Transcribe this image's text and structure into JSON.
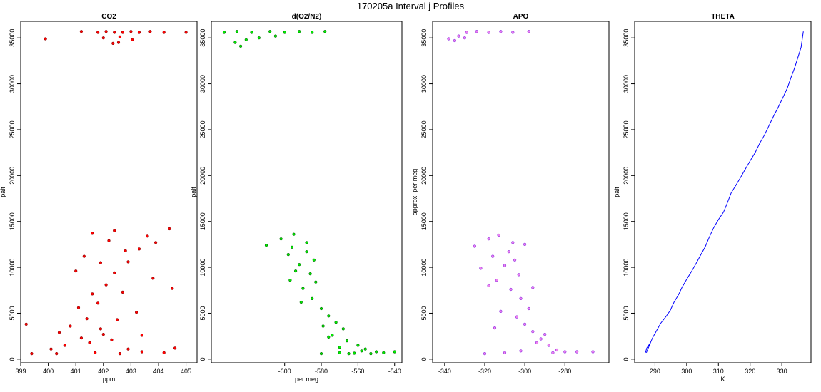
{
  "figure": {
    "title": "170205a   Interval j Profiles"
  },
  "chart_data": [
    {
      "type": "scatter",
      "title": "CO2",
      "xlabel": "ppm",
      "ylabel": "palt",
      "xlim": [
        399,
        405.4
      ],
      "ylim": [
        -400,
        36800
      ],
      "xticks": [
        399,
        400,
        401,
        402,
        403,
        404,
        405
      ],
      "yticks": [
        0,
        5000,
        10000,
        15000,
        20000,
        25000,
        30000,
        35000
      ],
      "colors": {
        "fill": "#ff0000",
        "edge": "#8b0000"
      },
      "series": [
        {
          "points": [
            [
              399.9,
              34900
            ],
            [
              401.2,
              35700
            ],
            [
              401.8,
              35600
            ],
            [
              402.1,
              35700
            ],
            [
              402.4,
              35600
            ],
            [
              402.7,
              35600
            ],
            [
              403.0,
              35700
            ],
            [
              403.3,
              35600
            ],
            [
              403.7,
              35700
            ],
            [
              404.2,
              35600
            ],
            [
              405.0,
              35600
            ],
            [
              402.35,
              34400
            ],
            [
              402.55,
              34500
            ],
            [
              403.05,
              34800
            ],
            [
              402.0,
              35000
            ],
            [
              402.6,
              35100
            ],
            [
              399.2,
              3800
            ],
            [
              400.4,
              2900
            ],
            [
              400.8,
              3600
            ],
            [
              401.4,
              4400
            ],
            [
              401.1,
              5600
            ],
            [
              401.8,
              6100
            ],
            [
              401.6,
              7100
            ],
            [
              402.1,
              8100
            ],
            [
              402.4,
              9400
            ],
            [
              402.9,
              10600
            ],
            [
              403.3,
              12000
            ],
            [
              403.6,
              13400
            ],
            [
              402.2,
              12900
            ],
            [
              401.3,
              11200
            ],
            [
              401.0,
              9600
            ],
            [
              402.7,
              7300
            ],
            [
              403.8,
              8800
            ],
            [
              404.5,
              7700
            ],
            [
              404.4,
              14200
            ],
            [
              401.6,
              13700
            ],
            [
              402.4,
              14000
            ],
            [
              403.2,
              5100
            ],
            [
              402.0,
              2700
            ],
            [
              400.6,
              1500
            ],
            [
              401.5,
              1800
            ],
            [
              403.4,
              2600
            ],
            [
              402.9,
              1100
            ],
            [
              401.9,
              3300
            ],
            [
              400.3,
              600
            ],
            [
              399.4,
              600
            ],
            [
              400.1,
              1100
            ],
            [
              401.7,
              700
            ],
            [
              402.6,
              600
            ],
            [
              403.4,
              800
            ],
            [
              404.2,
              700
            ],
            [
              404.6,
              1200
            ],
            [
              403.9,
              12700
            ],
            [
              402.8,
              11800
            ],
            [
              401.9,
              10500
            ],
            [
              402.5,
              4300
            ],
            [
              401.2,
              2300
            ],
            [
              402.3,
              2100
            ]
          ]
        }
      ]
    },
    {
      "type": "scatter",
      "title": "d(O2/N2)",
      "xlabel": "per meg",
      "ylabel": "palt",
      "xlim": [
        -640,
        -536
      ],
      "ylim": [
        -400,
        36800
      ],
      "xticks": [
        -600,
        -580,
        -560,
        -540
      ],
      "yticks": [
        0,
        5000,
        10000,
        15000,
        20000,
        25000,
        30000,
        35000
      ],
      "colors": {
        "fill": "#00ee00",
        "edge": "#006400"
      },
      "series": [
        {
          "points": [
            [
              -633,
              35600
            ],
            [
              -626,
              35700
            ],
            [
              -618,
              35600
            ],
            [
              -608,
              35700
            ],
            [
              -600,
              35600
            ],
            [
              -592,
              35700
            ],
            [
              -585,
              35600
            ],
            [
              -578,
              35700
            ],
            [
              -627,
              34500
            ],
            [
              -624,
              34100
            ],
            [
              -621,
              34800
            ],
            [
              -614,
              35000
            ],
            [
              -605,
              35200
            ],
            [
              -610,
              12400
            ],
            [
              -602,
              13100
            ],
            [
              -595,
              13600
            ],
            [
              -588,
              12700
            ],
            [
              -598,
              11400
            ],
            [
              -592,
              10300
            ],
            [
              -586,
              9300
            ],
            [
              -597,
              8600
            ],
            [
              -590,
              7700
            ],
            [
              -585,
              6600
            ],
            [
              -580,
              5500
            ],
            [
              -576,
              4700
            ],
            [
              -572,
              4000
            ],
            [
              -568,
              3300
            ],
            [
              -574,
              2600
            ],
            [
              -566,
              2000
            ],
            [
              -560,
              1500
            ],
            [
              -556,
              1100
            ],
            [
              -550,
              800
            ],
            [
              -546,
              700
            ],
            [
              -540,
              800
            ],
            [
              -570,
              700
            ],
            [
              -580,
              600
            ],
            [
              -562,
              650
            ],
            [
              -594,
              9600
            ],
            [
              -588,
              11700
            ],
            [
              -583,
              8400
            ],
            [
              -591,
              6200
            ],
            [
              -579,
              3600
            ],
            [
              -570,
              1300
            ],
            [
              -553,
              600
            ],
            [
              -584,
              10800
            ],
            [
              -596,
              12200
            ],
            [
              -576,
              2400
            ],
            [
              -558,
              900
            ],
            [
              -565,
              600
            ]
          ]
        }
      ]
    },
    {
      "type": "scatter",
      "title": "APO",
      "xlabel": "",
      "ylabel": "approx. per meg",
      "xlim": [
        -346,
        -258
      ],
      "ylim": [
        -400,
        36800
      ],
      "xticks": [
        -340,
        -320,
        -300,
        -280
      ],
      "yticks": [
        0,
        5000,
        10000,
        15000,
        20000,
        25000,
        30000,
        35000
      ],
      "colors": {
        "fill": "#ee82ee",
        "edge": "#8a2be2"
      },
      "series": [
        {
          "points": [
            [
              -338,
              34900
            ],
            [
              -333,
              35200
            ],
            [
              -329,
              35600
            ],
            [
              -324,
              35700
            ],
            [
              -318,
              35600
            ],
            [
              -312,
              35700
            ],
            [
              -306,
              35600
            ],
            [
              -298,
              35700
            ],
            [
              -335,
              34700
            ],
            [
              -330,
              35000
            ],
            [
              -325,
              12300
            ],
            [
              -318,
              13100
            ],
            [
              -313,
              13500
            ],
            [
              -306,
              12700
            ],
            [
              -316,
              11200
            ],
            [
              -310,
              10200
            ],
            [
              -303,
              9200
            ],
            [
              -314,
              8600
            ],
            [
              -307,
              7600
            ],
            [
              -302,
              6600
            ],
            [
              -298,
              5500
            ],
            [
              -304,
              4600
            ],
            [
              -300,
              3800
            ],
            [
              -296,
              3000
            ],
            [
              -292,
              2200
            ],
            [
              -288,
              1500
            ],
            [
              -284,
              1000
            ],
            [
              -280,
              800
            ],
            [
              -274,
              800
            ],
            [
              -266,
              800
            ],
            [
              -310,
              700
            ],
            [
              -320,
              600
            ],
            [
              -296,
              7800
            ],
            [
              -322,
              9900
            ],
            [
              -308,
              11700
            ],
            [
              -300,
              12500
            ],
            [
              -312,
              5200
            ],
            [
              -294,
              1800
            ],
            [
              -286,
              700
            ],
            [
              -302,
              900
            ],
            [
              -315,
              3400
            ],
            [
              -290,
              2700
            ],
            [
              -318,
              8000
            ],
            [
              -305,
              10800
            ]
          ]
        }
      ]
    },
    {
      "type": "line",
      "title": "THETA",
      "xlabel": "K",
      "ylabel": "palt",
      "xlim": [
        283.6,
        339.2
      ],
      "ylim": [
        -400,
        36800
      ],
      "xticks": [
        290,
        300,
        310,
        320,
        330
      ],
      "yticks": [
        0,
        5000,
        10000,
        15000,
        20000,
        25000,
        30000,
        35000
      ],
      "colors": {
        "line": "#0000ff"
      },
      "series": [
        {
          "x": [
            287.0,
            287.4,
            288.6,
            287.3,
            288.0,
            289.2,
            290.5,
            291.8,
            293.4,
            294.8,
            296.0,
            297.4,
            298.5,
            300.0,
            301.6,
            303.1,
            304.5,
            305.8,
            307.0,
            308.5,
            310.0,
            311.6,
            312.8,
            314.0,
            315.6,
            317.0,
            318.5,
            320.0,
            321.6,
            323.0,
            324.5,
            325.9,
            327.3,
            328.8,
            330.2,
            331.7,
            332.8,
            334.0,
            335.1,
            336.1,
            336.5,
            336.8
          ],
          "y": [
            700,
            1200,
            1800,
            700,
            1300,
            2300,
            3100,
            3900,
            4600,
            5300,
            6200,
            7000,
            7800,
            8700,
            9600,
            10500,
            11400,
            12200,
            13200,
            14300,
            15200,
            16000,
            17000,
            18100,
            19000,
            19800,
            20700,
            21600,
            22500,
            23500,
            24400,
            25400,
            26400,
            27400,
            28400,
            29500,
            30600,
            31700,
            32900,
            34000,
            35000,
            35700
          ]
        }
      ]
    }
  ]
}
